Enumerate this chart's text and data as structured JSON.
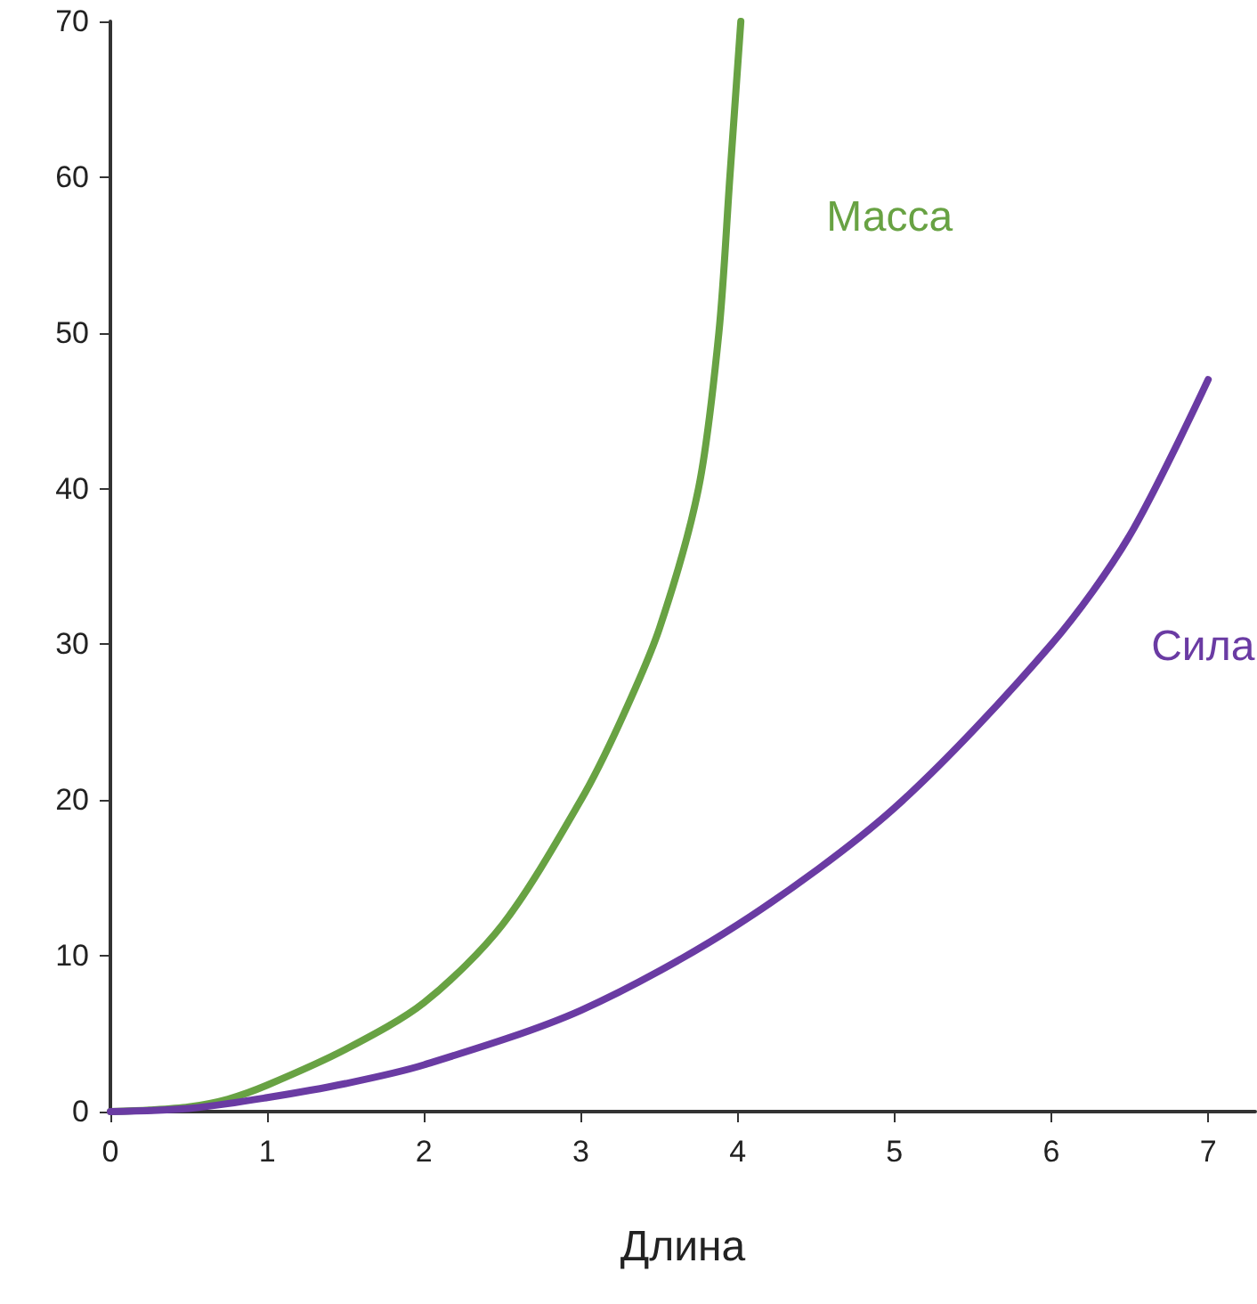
{
  "chart_data": {
    "type": "line",
    "xlabel": "Длина",
    "xlim": [
      0,
      7.3
    ],
    "xticks": [
      0,
      1,
      2,
      3,
      4,
      5,
      6,
      7
    ],
    "ylim": [
      0,
      70
    ],
    "yticks": [
      0,
      10,
      20,
      30,
      40,
      50,
      60,
      70
    ],
    "grid": false,
    "legend": false,
    "marker": "none",
    "line_style": "solid",
    "series": [
      {
        "name": "Масса",
        "color": "#68a243",
        "x": [
          0,
          0.25,
          0.5,
          0.75,
          1,
          1.5,
          2,
          2.5,
          3,
          3.25,
          3.5,
          3.75,
          3.88,
          3.95,
          4.02
        ],
        "values": [
          0,
          0.1,
          0.3,
          0.8,
          1.7,
          4,
          7,
          12,
          20,
          25,
          31,
          40,
          50,
          60,
          70
        ]
      },
      {
        "name": "Сила",
        "color": "#6a3ba3",
        "x": [
          0,
          0.5,
          1,
          1.5,
          2,
          3,
          4,
          5,
          6,
          6.5,
          7
        ],
        "values": [
          0,
          0.2,
          0.9,
          1.8,
          3,
          6.5,
          12,
          19.5,
          30,
          37,
          47
        ]
      }
    ]
  }
}
